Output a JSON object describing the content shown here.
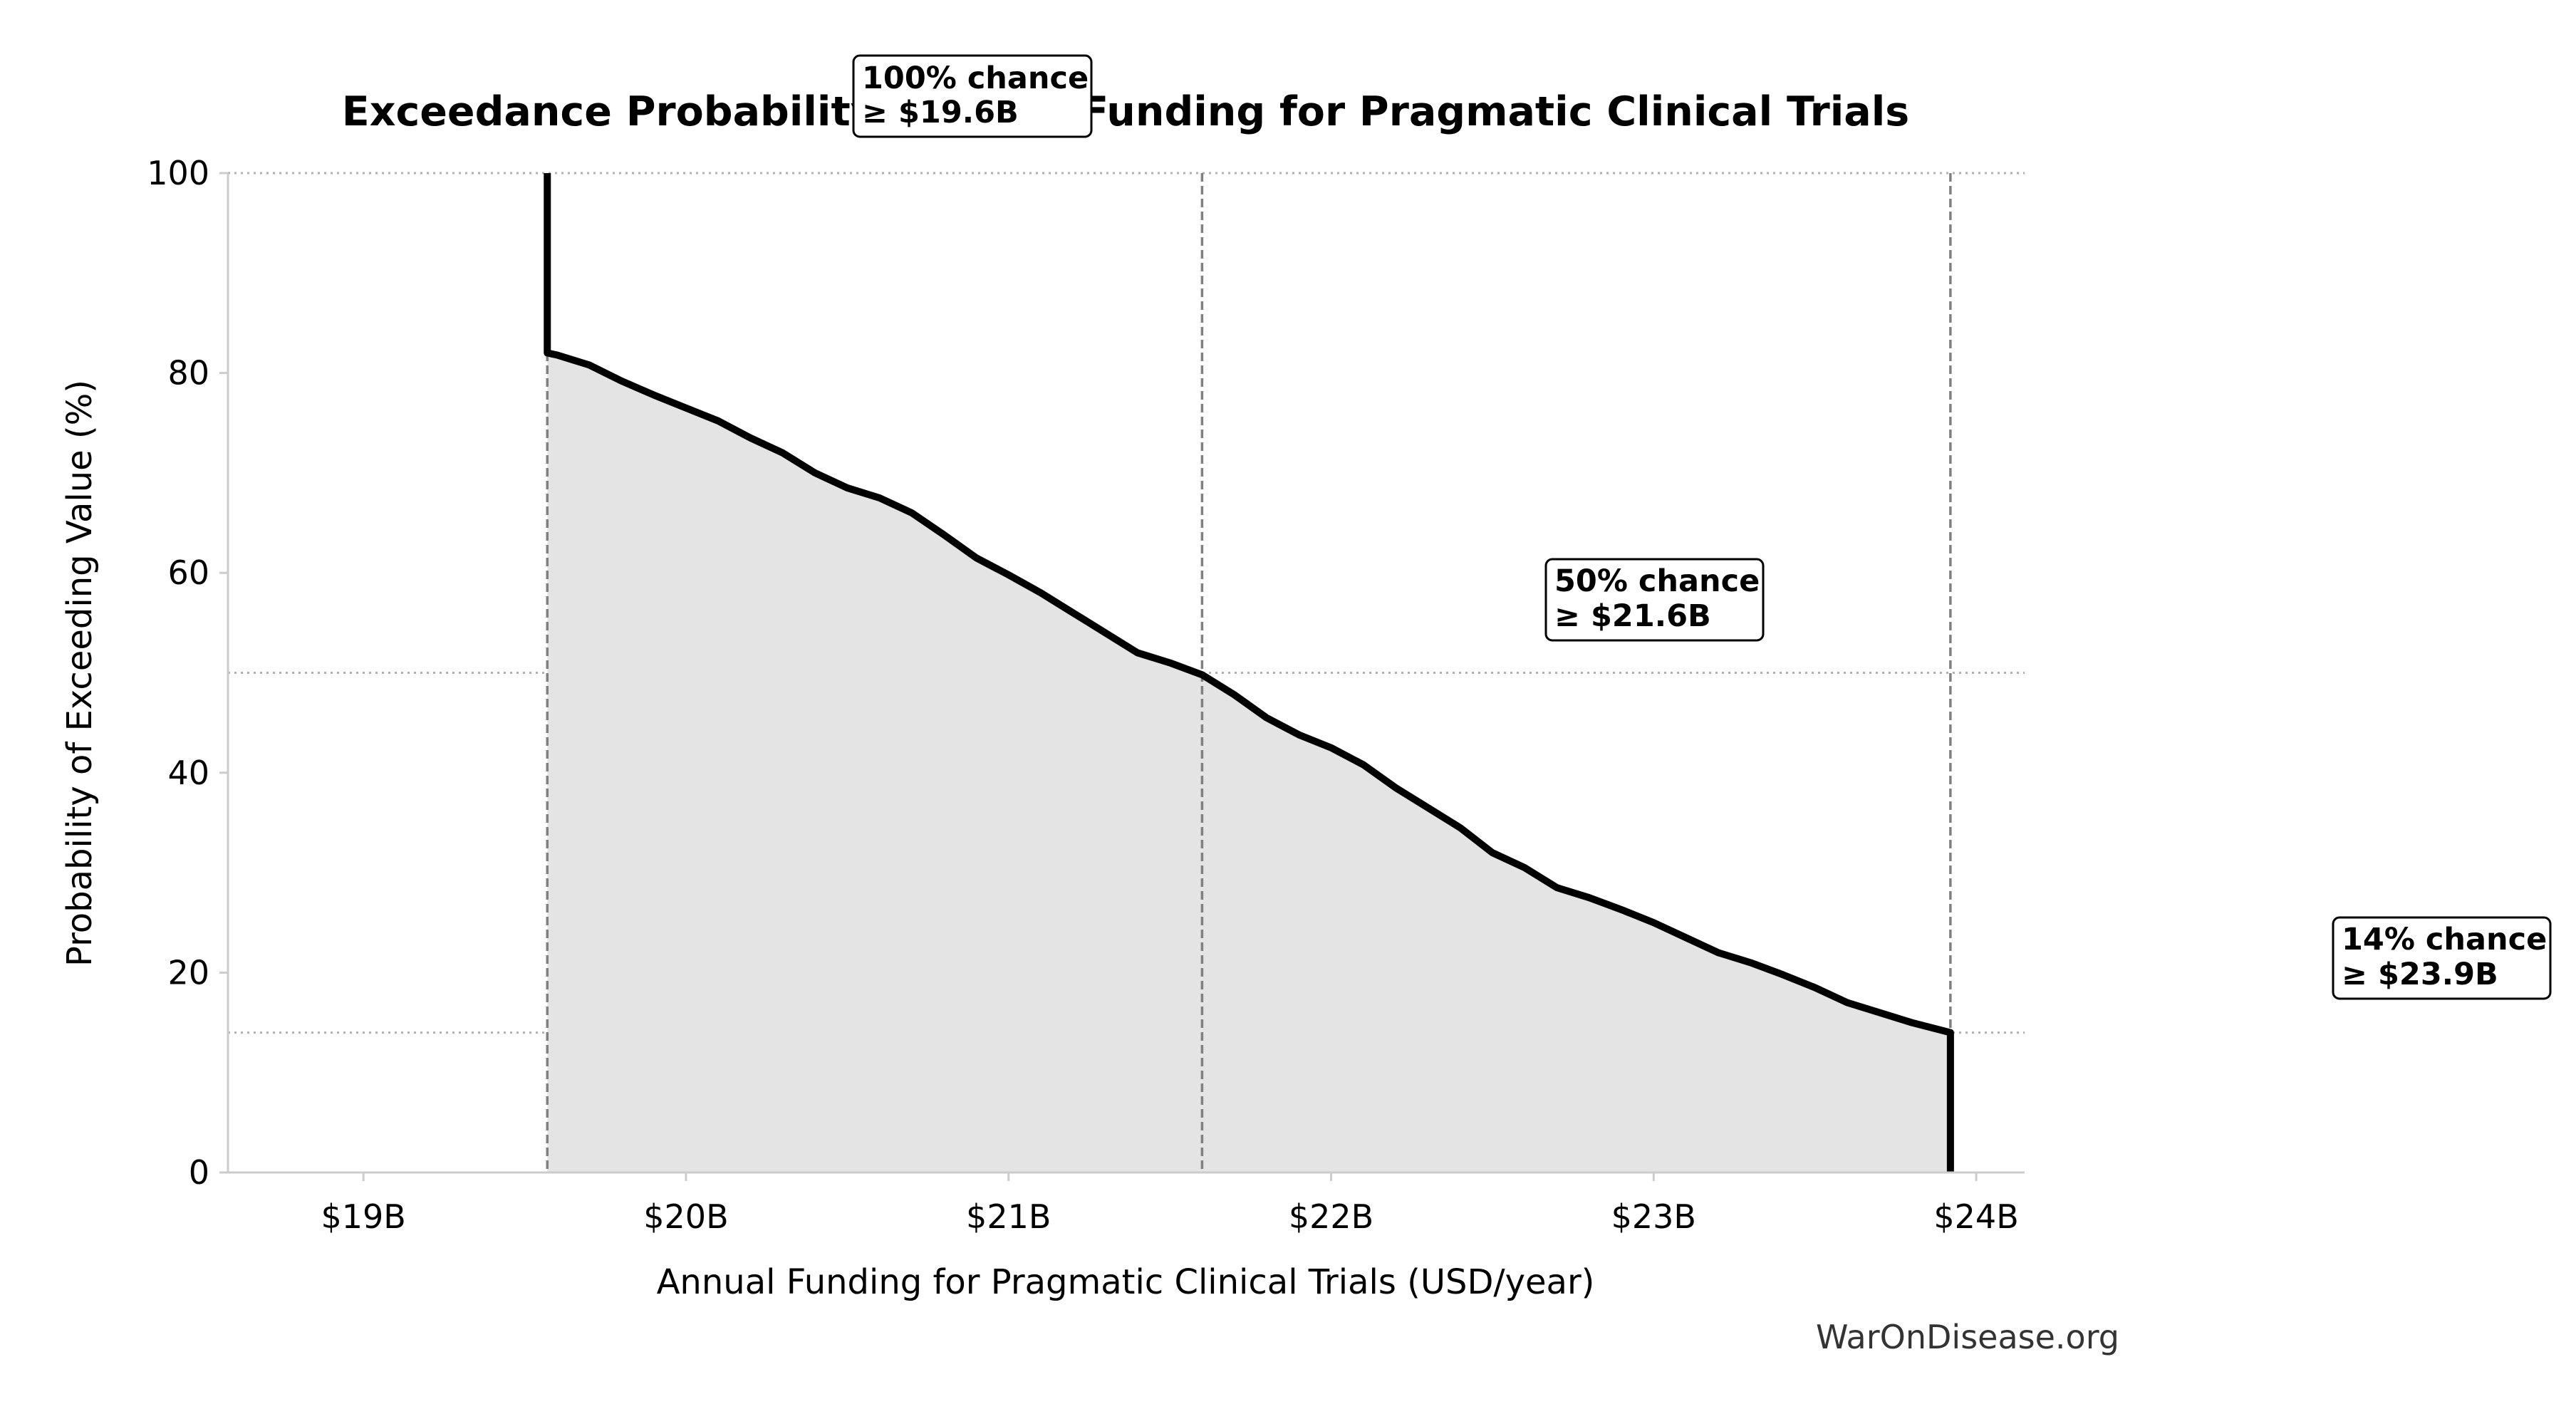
{
  "chart_data": {
    "type": "area",
    "title": "Exceedance Probability: Annual Funding for Pragmatic Clinical Trials",
    "xlabel": "Annual Funding for Pragmatic Clinical Trials (USD/year)",
    "ylabel": "Probability of Exceeding Value (%)",
    "xlim": [
      18.58,
      24.15
    ],
    "ylim": [
      0,
      100
    ],
    "x_ticks": [
      {
        "value": 19,
        "label": "$19B"
      },
      {
        "value": 20,
        "label": "$20B"
      },
      {
        "value": 21,
        "label": "$21B"
      },
      {
        "value": 22,
        "label": "$22B"
      },
      {
        "value": 23,
        "label": "$23B"
      },
      {
        "value": 24,
        "label": "$24B"
      }
    ],
    "y_ticks": [
      {
        "value": 0,
        "label": "0"
      },
      {
        "value": 20,
        "label": "20"
      },
      {
        "value": 40,
        "label": "40"
      },
      {
        "value": 60,
        "label": "60"
      },
      {
        "value": 80,
        "label": "80"
      },
      {
        "value": 100,
        "label": "100"
      }
    ],
    "grid": "horizontal-dotted",
    "series": [
      {
        "x": [
          19.57,
          19.57,
          19.6,
          19.7,
          19.8,
          19.9,
          20.0,
          20.1,
          20.2,
          20.3,
          20.4,
          20.5,
          20.6,
          20.7,
          20.8,
          20.9,
          21.0,
          21.1,
          21.2,
          21.3,
          21.4,
          21.5,
          21.6,
          21.7,
          21.8,
          21.9,
          22.0,
          22.1,
          22.2,
          22.3,
          22.4,
          22.5,
          22.6,
          22.7,
          22.8,
          22.9,
          23.0,
          23.1,
          23.2,
          23.3,
          23.4,
          23.5,
          23.6,
          23.7,
          23.8,
          23.92,
          23.92
        ],
        "y": [
          100,
          82,
          81.8,
          80.8,
          79.2,
          77.8,
          76.5,
          75.2,
          73.5,
          72.0,
          70.0,
          68.5,
          67.5,
          66.0,
          63.8,
          61.5,
          59.8,
          58.0,
          56.0,
          54.0,
          52.0,
          51.0,
          49.8,
          47.8,
          45.5,
          43.8,
          42.5,
          40.8,
          38.5,
          36.5,
          34.5,
          32.0,
          30.5,
          28.5,
          27.5,
          26.3,
          25.0,
          23.5,
          22.0,
          21.0,
          19.8,
          18.5,
          17.0,
          16.0,
          15.0,
          14,
          0
        ]
      }
    ],
    "reference_lines": {
      "vertical": [
        19.57,
        21.6,
        23.92
      ],
      "horizontal": [
        100,
        50,
        14
      ]
    },
    "annotations": [
      {
        "line1": "100% chance",
        "line2": "≥ $19.6B"
      },
      {
        "line1": "50% chance",
        "line2": "≥ $21.6B"
      },
      {
        "line1": "14% chance",
        "line2": "≥ $23.9B"
      }
    ],
    "watermark": "WarOnDisease.org",
    "colors": {
      "line": "#000000",
      "fill": "#e4e4e4",
      "reference": "#808080",
      "grid": "#b0b0b0"
    }
  }
}
